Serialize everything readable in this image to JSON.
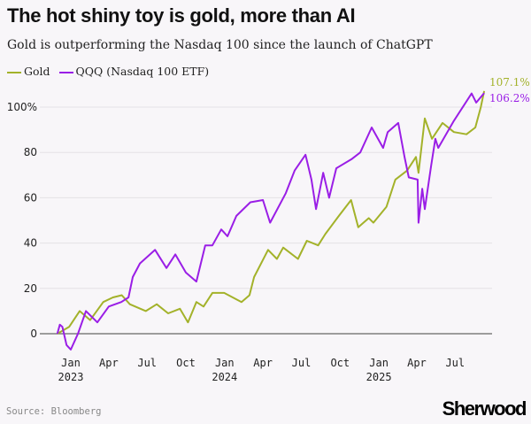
{
  "title": "The hot shiny toy is gold, more than AI",
  "subtitle": "Gold is outperforming the Nasdaq 100 since the launch of ChatGPT",
  "source": "Source: Bloomberg",
  "logo": "Sherwood",
  "chart_data": {
    "type": "line",
    "title": "The hot shiny toy is gold, more than AI",
    "subtitle": "Gold is outperforming the Nasdaq 100 since the launch of ChatGPT",
    "xlabel": "",
    "ylabel": "",
    "ylim": [
      -8,
      110
    ],
    "y_ticks": [
      0,
      20,
      40,
      60,
      80,
      100
    ],
    "y_tick_labels": [
      "0",
      "20",
      "40",
      "60",
      "80",
      "100%"
    ],
    "x_ticks": [
      {
        "date": "2023-01-01",
        "label": "Jan",
        "year": "2023"
      },
      {
        "date": "2023-04-01",
        "label": "Apr",
        "year": ""
      },
      {
        "date": "2023-07-01",
        "label": "Jul",
        "year": ""
      },
      {
        "date": "2023-10-01",
        "label": "Oct",
        "year": ""
      },
      {
        "date": "2024-01-01",
        "label": "Jan",
        "year": "2024"
      },
      {
        "date": "2024-04-01",
        "label": "Apr",
        "year": ""
      },
      {
        "date": "2024-07-01",
        "label": "Jul",
        "year": ""
      },
      {
        "date": "2024-10-01",
        "label": "Oct",
        "year": ""
      },
      {
        "date": "2025-01-01",
        "label": "Jan",
        "year": "2025"
      },
      {
        "date": "2025-04-01",
        "label": "Apr",
        "year": ""
      },
      {
        "date": "2025-07-01",
        "label": "Jul",
        "year": ""
      }
    ],
    "grid": true,
    "legend": "top-left",
    "series": [
      {
        "name": "Gold",
        "color": "#a3b22a",
        "end_label": "107.1%",
        "points": [
          [
            "2022-11-30",
            0
          ],
          [
            "2022-12-28",
            3
          ],
          [
            "2023-01-22",
            10
          ],
          [
            "2023-02-16",
            6
          ],
          [
            "2023-03-19",
            14
          ],
          [
            "2023-04-11",
            16
          ],
          [
            "2023-05-02",
            17
          ],
          [
            "2023-05-21",
            13
          ],
          [
            "2023-06-28",
            10
          ],
          [
            "2023-07-24",
            13
          ],
          [
            "2023-08-20",
            9
          ],
          [
            "2023-09-17",
            11
          ],
          [
            "2023-10-06",
            5
          ],
          [
            "2023-10-26",
            14
          ],
          [
            "2023-11-12",
            12
          ],
          [
            "2023-12-03",
            18
          ],
          [
            "2023-12-31",
            18
          ],
          [
            "2024-02-10",
            14
          ],
          [
            "2024-02-29",
            17
          ],
          [
            "2024-03-11",
            25
          ],
          [
            "2024-04-13",
            37
          ],
          [
            "2024-05-04",
            33
          ],
          [
            "2024-05-19",
            38
          ],
          [
            "2024-06-23",
            33
          ],
          [
            "2024-07-14",
            41
          ],
          [
            "2024-08-10",
            39
          ],
          [
            "2024-08-27",
            44
          ],
          [
            "2024-09-28",
            52
          ],
          [
            "2024-10-27",
            59
          ],
          [
            "2024-11-13",
            47
          ],
          [
            "2024-12-08",
            51
          ],
          [
            "2024-12-19",
            49
          ],
          [
            "2025-01-19",
            56
          ],
          [
            "2025-02-09",
            68
          ],
          [
            "2025-03-09",
            72
          ],
          [
            "2025-03-30",
            78
          ],
          [
            "2025-04-05",
            71
          ],
          [
            "2025-04-20",
            95
          ],
          [
            "2025-05-07",
            86
          ],
          [
            "2025-06-01",
            93
          ],
          [
            "2025-06-28",
            89
          ],
          [
            "2025-07-28",
            88
          ],
          [
            "2025-08-18",
            91
          ],
          [
            "2025-08-31",
            100
          ],
          [
            "2025-09-08",
            107.1
          ]
        ]
      },
      {
        "name": "QQQ (Nasdaq 100 ETF)",
        "color": "#9a1ee6",
        "end_label": "106.2%",
        "points": [
          [
            "2022-11-30",
            0
          ],
          [
            "2022-12-06",
            4
          ],
          [
            "2022-12-12",
            3
          ],
          [
            "2022-12-22",
            -5
          ],
          [
            "2023-01-01",
            -7
          ],
          [
            "2023-01-18",
            0
          ],
          [
            "2023-02-06",
            10
          ],
          [
            "2023-03-05",
            5
          ],
          [
            "2023-04-01",
            12
          ],
          [
            "2023-05-01",
            14
          ],
          [
            "2023-05-18",
            16
          ],
          [
            "2023-05-28",
            25
          ],
          [
            "2023-06-14",
            31
          ],
          [
            "2023-07-20",
            37
          ],
          [
            "2023-08-16",
            29
          ],
          [
            "2023-09-06",
            35
          ],
          [
            "2023-10-01",
            27
          ],
          [
            "2023-10-26",
            23
          ],
          [
            "2023-11-16",
            39
          ],
          [
            "2023-12-03",
            39
          ],
          [
            "2023-12-24",
            46
          ],
          [
            "2024-01-08",
            43
          ],
          [
            "2024-01-29",
            52
          ],
          [
            "2024-03-02",
            58
          ],
          [
            "2024-04-01",
            59
          ],
          [
            "2024-04-18",
            49
          ],
          [
            "2024-05-25",
            62
          ],
          [
            "2024-06-15",
            72
          ],
          [
            "2024-07-11",
            79
          ],
          [
            "2024-07-25",
            68
          ],
          [
            "2024-08-05",
            55
          ],
          [
            "2024-08-22",
            71
          ],
          [
            "2024-09-05",
            60
          ],
          [
            "2024-09-22",
            73
          ],
          [
            "2024-10-28",
            77
          ],
          [
            "2024-11-18",
            80
          ],
          [
            "2024-12-15",
            91
          ],
          [
            "2025-01-11",
            82
          ],
          [
            "2025-01-22",
            89
          ],
          [
            "2025-02-16",
            93
          ],
          [
            "2025-03-03",
            78
          ],
          [
            "2025-03-13",
            69
          ],
          [
            "2025-04-03",
            68
          ],
          [
            "2025-04-05",
            49
          ],
          [
            "2025-04-14",
            64
          ],
          [
            "2025-04-20",
            55
          ],
          [
            "2025-05-05",
            74
          ],
          [
            "2025-05-15",
            86
          ],
          [
            "2025-05-22",
            82
          ],
          [
            "2025-06-28",
            94
          ],
          [
            "2025-08-09",
            106
          ],
          [
            "2025-08-20",
            102
          ],
          [
            "2025-09-08",
            106.2
          ]
        ]
      }
    ]
  }
}
